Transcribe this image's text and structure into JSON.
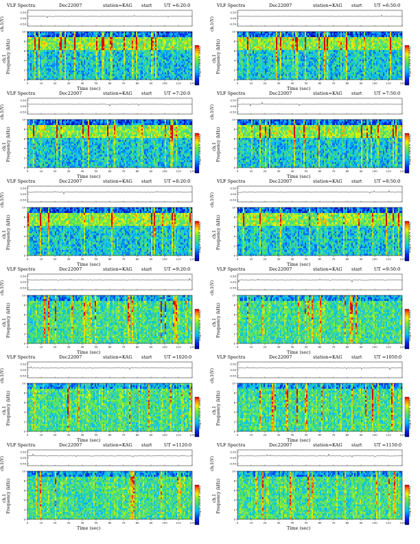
{
  "common": {
    "name": "VLF Spectra",
    "date": "Dec22007",
    "station": "station=KAG",
    "start_label": "start",
    "ch_label": "ch.1(V)",
    "freq_label": "Frequency (kHz)",
    "ch1_label": "ch.1",
    "time_label": "Time (sec)",
    "colorbar_label": "log(PSD)(V²/Hz)",
    "ch_ticks": [
      "0.50",
      "0.00",
      "-0.50"
    ],
    "freq_ticks": [
      "0",
      "2",
      "4",
      "6",
      "8",
      "10"
    ],
    "time_ticks": [
      "0",
      "10",
      "20",
      "30",
      "40",
      "50",
      "60",
      "70",
      "80",
      "90",
      "100",
      "110",
      "120"
    ]
  },
  "panels": [
    {
      "ut": "UT =6:20:0"
    },
    {
      "ut": "UT =6:50:0"
    },
    {
      "ut": "UT =7:20:0"
    },
    {
      "ut": "UT =7:50:0"
    },
    {
      "ut": "UT =8:20:0"
    },
    {
      "ut": "UT =8:50:0"
    },
    {
      "ut": "UT =9:20:0"
    },
    {
      "ut": "UT =9:50:0"
    },
    {
      "ut": "UT =1020:0"
    },
    {
      "ut": "UT =1050:0"
    },
    {
      "ut": "UT =1120:0"
    },
    {
      "ut": "UT =1150:0"
    }
  ],
  "chart_data": {
    "type": "heatmap",
    "panel_count": 12,
    "x_range": [
      0,
      120
    ],
    "x_unit": "sec",
    "y_range": [
      0,
      10
    ],
    "y_unit": "kHz",
    "ch1_range": [
      -0.5,
      0.5
    ]
  }
}
